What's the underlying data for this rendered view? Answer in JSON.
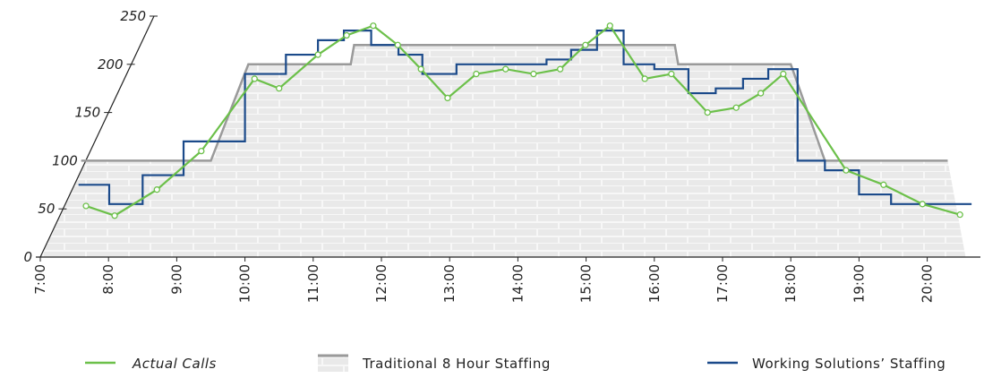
{
  "chart_data": {
    "type": "line",
    "xlim": [
      7,
      20.8
    ],
    "xticks": [
      {
        "value": 7,
        "label": "7:00"
      },
      {
        "value": 8,
        "label": "8:00"
      },
      {
        "value": 9,
        "label": "9:00"
      },
      {
        "value": 10,
        "label": "10:00"
      },
      {
        "value": 11,
        "label": "11:00"
      },
      {
        "value": 12,
        "label": "12:00"
      },
      {
        "value": 13,
        "label": "13:00"
      },
      {
        "value": 14,
        "label": "14:00"
      },
      {
        "value": 15,
        "label": "15:00"
      },
      {
        "value": 16,
        "label": "16:00"
      },
      {
        "value": 17,
        "label": "17:00"
      },
      {
        "value": 18,
        "label": "18:00"
      },
      {
        "value": 19,
        "label": "19:00"
      },
      {
        "value": 20,
        "label": "20:00"
      }
    ],
    "ylim": [
      0,
      250
    ],
    "yticks": [
      0,
      50,
      100,
      150,
      200,
      250
    ],
    "series": [
      {
        "name": "Actual Calls",
        "color": "#6cc04a",
        "markers": true,
        "x": [
          7.67,
          8.09,
          8.71,
          9.36,
          10.14,
          10.5,
          11.07,
          11.49,
          11.88,
          12.24,
          12.58,
          12.97,
          13.39,
          13.82,
          14.23,
          14.62,
          14.99,
          15.35,
          15.86,
          16.25,
          16.78,
          17.2,
          17.56,
          17.89,
          18.81,
          19.36,
          19.93,
          20.48
        ],
        "values": [
          53,
          43,
          70,
          110,
          185,
          175,
          210,
          230,
          240,
          220,
          195,
          165,
          190,
          195,
          190,
          195,
          220,
          240,
          185,
          190,
          150,
          155,
          170,
          190,
          90,
          75,
          55,
          44
        ]
      },
      {
        "name": "Traditional 8 Hour Staffing",
        "color": "#9a9a9a",
        "area": true,
        "x": [
          7.6,
          9.5,
          10.05,
          11.55,
          11.6,
          16.3,
          16.35,
          18.0,
          18.5,
          20.3
        ],
        "values": [
          100,
          100,
          200,
          200,
          220,
          220,
          200,
          200,
          100,
          100
        ]
      },
      {
        "name": "Working Solutions’ Staffing",
        "color": "#1b4a8a",
        "step": true,
        "x": [
          7.56,
          8.01,
          8.5,
          9.1,
          10.0,
          10.6,
          11.07,
          11.45,
          11.85,
          12.25,
          12.6,
          13.1,
          14.42,
          14.78,
          15.16,
          15.55,
          16.0,
          16.5,
          16.9,
          17.3,
          17.67,
          18.1,
          18.5,
          19.0,
          19.47,
          20.65
        ],
        "values": [
          75,
          55,
          85,
          120,
          190,
          210,
          225,
          235,
          220,
          210,
          190,
          200,
          205,
          215,
          235,
          200,
          195,
          170,
          175,
          185,
          195,
          100,
          90,
          65,
          55,
          55
        ]
      }
    ]
  }
}
